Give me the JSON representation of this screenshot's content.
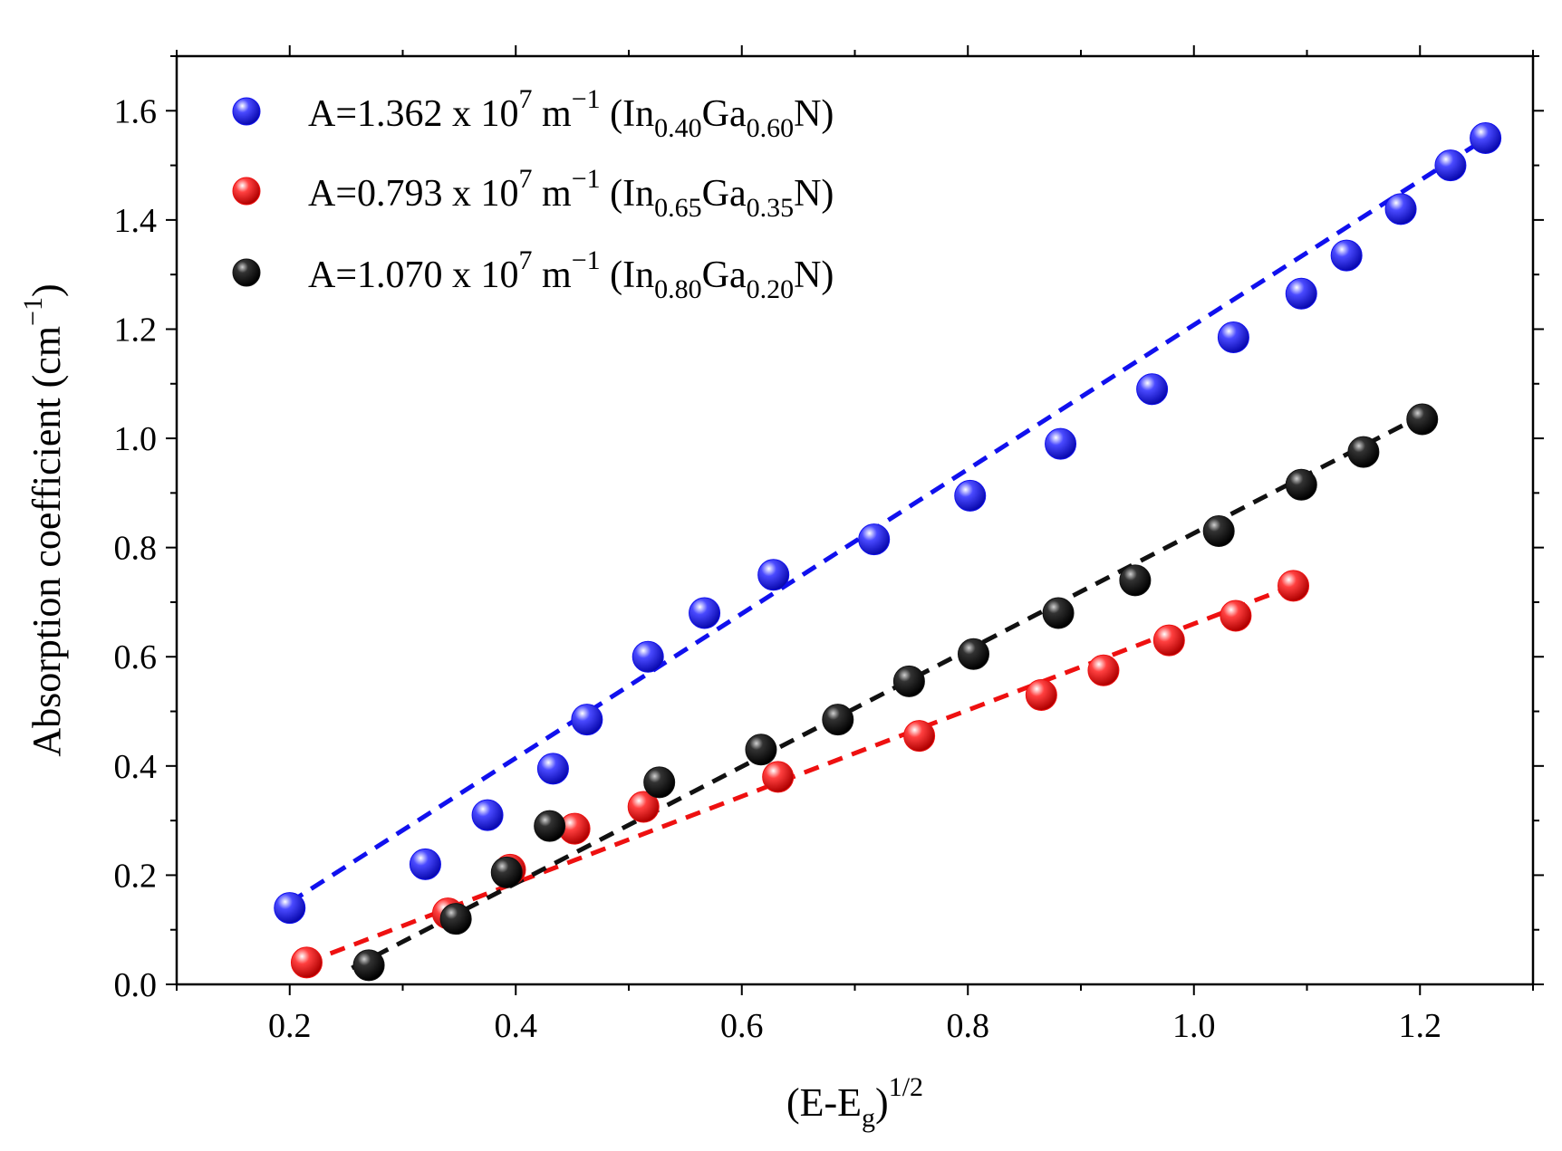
{
  "chart_data": {
    "type": "scatter",
    "xlabel": {
      "main": "(E-E",
      "sub": "g",
      "close": ")",
      "sup": "1/2"
    },
    "ylabel": {
      "main": "Absorption coefficient (cm",
      "sup": "−1",
      "close": ")"
    },
    "xlim": [
      0.1,
      1.3
    ],
    "ylim": [
      0.0,
      1.7
    ],
    "xticks": [
      0.2,
      0.4,
      0.6,
      0.8,
      1.0,
      1.2
    ],
    "xtick_labels": [
      "0.2",
      "0.4",
      "0.6",
      "0.8",
      "1.0",
      "1.2"
    ],
    "yticks": [
      0.0,
      0.2,
      0.4,
      0.6,
      0.8,
      1.0,
      1.2,
      1.4,
      1.6
    ],
    "ytick_labels": [
      "0.0",
      "0.2",
      "0.4",
      "0.6",
      "0.8",
      "1.0",
      "1.2",
      "1.4",
      "1.6"
    ],
    "legend_position": "top-left",
    "series": [
      {
        "name": "In0.40Ga0.60N",
        "color": "#1010ee",
        "legend": {
          "prefix": "A=1.362 x 10",
          "exp": "7",
          "mid": " m",
          "mexp": "−1",
          "open": " (In",
          "s1": "0.40",
          "ga": "Ga",
          "s2": "0.60",
          "end": "N)"
        },
        "x": [
          0.2,
          0.32,
          0.375,
          0.433,
          0.463,
          0.517,
          0.567,
          0.628,
          0.717,
          0.802,
          0.882,
          0.963,
          1.035,
          1.095,
          1.135,
          1.183,
          1.227,
          1.258
        ],
        "y": [
          0.14,
          0.22,
          0.31,
          0.395,
          0.485,
          0.6,
          0.68,
          0.75,
          0.815,
          0.895,
          0.99,
          1.09,
          1.185,
          1.265,
          1.335,
          1.42,
          1.5,
          1.55
        ],
        "fit": {
          "x": [
            0.2,
            1.255
          ],
          "y": [
            0.15,
            1.545
          ]
        }
      },
      {
        "name": "In0.65Ga0.35N",
        "color": "#ee1010",
        "legend": {
          "prefix": "A=0.793 x 10",
          "exp": "7",
          "mid": " m",
          "mexp": "−1",
          "open": " (In",
          "s1": "0.65",
          "ga": "Ga",
          "s2": "0.35",
          "end": "N)"
        },
        "x": [
          0.215,
          0.34,
          0.395,
          0.452,
          0.513,
          0.632,
          0.757,
          0.865,
          0.92,
          0.978,
          1.037,
          1.088
        ],
        "y": [
          0.04,
          0.13,
          0.21,
          0.285,
          0.325,
          0.38,
          0.455,
          0.53,
          0.575,
          0.63,
          0.675,
          0.73
        ],
        "fit": {
          "x": [
            0.215,
            1.088
          ],
          "y": [
            0.04,
            0.73
          ]
        }
      },
      {
        "name": "In0.80Ga0.20N",
        "color": "#111111",
        "legend": {
          "prefix": "A=1.070 x 10",
          "exp": "7",
          "mid": " m",
          "mexp": "−1",
          "open": " (In",
          "s1": "0.80",
          "ga": "Ga",
          "s2": "0.20",
          "end": "N)"
        },
        "x": [
          0.27,
          0.347,
          0.392,
          0.43,
          0.527,
          0.617,
          0.685,
          0.748,
          0.805,
          0.88,
          0.948,
          1.022,
          1.095,
          1.15,
          1.202
        ],
        "y": [
          0.035,
          0.12,
          0.205,
          0.29,
          0.37,
          0.43,
          0.485,
          0.555,
          0.605,
          0.68,
          0.74,
          0.83,
          0.915,
          0.975,
          1.035
        ],
        "fit": {
          "x": [
            0.255,
            1.2
          ],
          "y": [
            0.03,
            1.04
          ]
        }
      }
    ]
  }
}
